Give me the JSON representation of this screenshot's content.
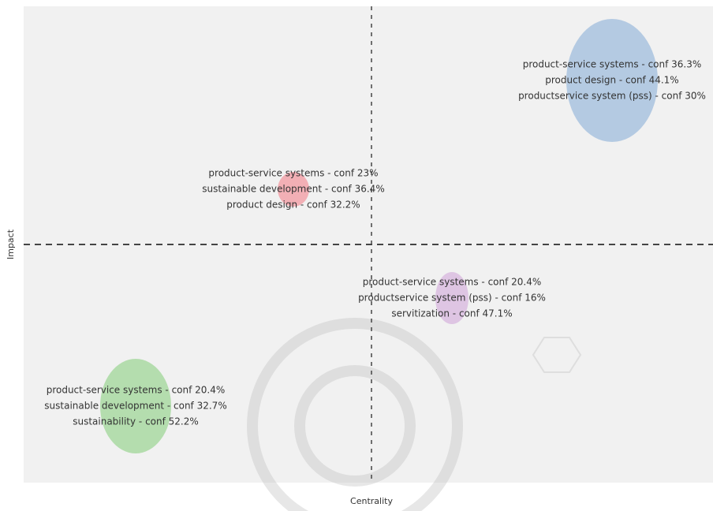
{
  "diagram": {
    "y_axis_label": "Impact",
    "x_axis_label": "Centrality",
    "clusters": [
      {
        "color": "#a9c3df",
        "labels": [
          "product-service systems - conf 36.3%",
          "product design - conf 44.1%",
          "productservice system (pss) - conf 30%"
        ]
      },
      {
        "color": "#f2a3aa",
        "labels": [
          "product-service systems - conf 23%",
          "sustainable development - conf 36.4%",
          "product design - conf 32.2%"
        ]
      },
      {
        "color": "#dbbde0",
        "labels": [
          "product-service systems - conf 20.4%",
          "productservice system (pss) - conf 16%",
          "servitization - conf 47.1%"
        ]
      },
      {
        "color": "#a9d9a2",
        "labels": [
          "product-service systems - conf 20.4%",
          "sustainable development - conf 32.7%",
          "sustainability - conf 52.2%"
        ]
      }
    ]
  }
}
